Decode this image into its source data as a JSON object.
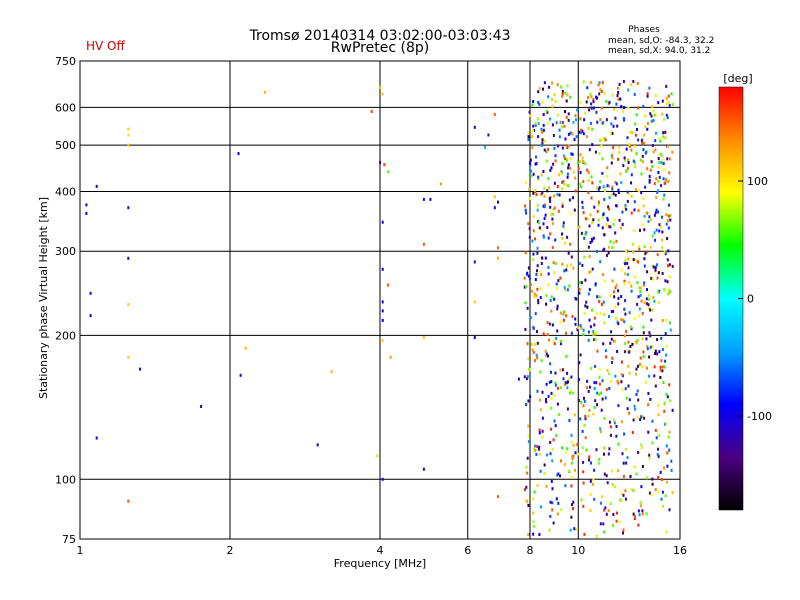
{
  "header": {
    "title_line1": "Tromsø 20140314 03:02:00-03:03:43",
    "title_line2": "RwPretec (8p)",
    "status": "HV Off",
    "stats_title": "Phases",
    "stats_o": "mean, sd,O: -84.3, 32.2",
    "stats_x": "mean, sd,X:  94.0, 31.2"
  },
  "colorbar": {
    "label": "[deg]",
    "ticks": [
      {
        "value": 100,
        "label": "100"
      },
      {
        "value": 0,
        "label": "0"
      },
      {
        "value": -100,
        "label": "-100"
      }
    ],
    "range": [
      -180,
      180
    ],
    "colors": [
      "#000000",
      "#4b0082",
      "#0000ff",
      "#00a0ff",
      "#00ffff",
      "#00ff00",
      "#ffff00",
      "#ff8c00",
      "#ff0000"
    ]
  },
  "chart_data": {
    "type": "scatter",
    "title": "Tromsø 20140314 03:02:00-03:03:43",
    "subtitle": "RwPretec (8p)",
    "xlabel": "Frequency [MHz]",
    "ylabel": "Stationary phase Virtual Height [km]",
    "x_scale": "log",
    "y_scale": "log",
    "xlim": [
      1,
      16
    ],
    "ylim": [
      75,
      750
    ],
    "x_ticks": [
      {
        "value": 1,
        "label": "1"
      },
      {
        "value": 2,
        "label": "2"
      },
      {
        "value": 4,
        "label": "4"
      },
      {
        "value": 6,
        "label": "6"
      },
      {
        "value": 8,
        "label": "8"
      },
      {
        "value": 10,
        "label": "10"
      },
      {
        "value": 16,
        "label": "16"
      }
    ],
    "y_ticks": [
      {
        "value": 75,
        "label": "75"
      },
      {
        "value": 100,
        "label": "100"
      },
      {
        "value": 200,
        "label": "200"
      },
      {
        "value": 300,
        "label": "300"
      },
      {
        "value": 400,
        "label": "400"
      },
      {
        "value": 500,
        "label": "500"
      },
      {
        "value": 600,
        "label": "600"
      },
      {
        "value": 750,
        "label": "750"
      }
    ],
    "grid": true,
    "color_variable": "phase [deg]",
    "points": [
      {
        "x": 1.03,
        "y": 375,
        "phase": -100
      },
      {
        "x": 1.03,
        "y": 360,
        "phase": -90
      },
      {
        "x": 1.05,
        "y": 245,
        "phase": -110
      },
      {
        "x": 1.05,
        "y": 220,
        "phase": -100
      },
      {
        "x": 1.08,
        "y": 410,
        "phase": -110
      },
      {
        "x": 1.08,
        "y": 122,
        "phase": -100
      },
      {
        "x": 1.25,
        "y": 540,
        "phase": 110
      },
      {
        "x": 1.25,
        "y": 525,
        "phase": 100
      },
      {
        "x": 1.25,
        "y": 500,
        "phase": 110
      },
      {
        "x": 1.25,
        "y": 370,
        "phase": -110
      },
      {
        "x": 1.25,
        "y": 290,
        "phase": -110
      },
      {
        "x": 1.25,
        "y": 232,
        "phase": 110
      },
      {
        "x": 1.25,
        "y": 180,
        "phase": 110
      },
      {
        "x": 1.25,
        "y": 90,
        "phase": 150
      },
      {
        "x": 1.32,
        "y": 170,
        "phase": -110
      },
      {
        "x": 1.75,
        "y": 142,
        "phase": -110
      },
      {
        "x": 2.08,
        "y": 480,
        "phase": -100
      },
      {
        "x": 2.1,
        "y": 165,
        "phase": -100
      },
      {
        "x": 2.15,
        "y": 188,
        "phase": 120
      },
      {
        "x": 2.35,
        "y": 645,
        "phase": 120
      },
      {
        "x": 3.0,
        "y": 118,
        "phase": -110
      },
      {
        "x": 3.2,
        "y": 168,
        "phase": 120
      },
      {
        "x": 3.85,
        "y": 588,
        "phase": 160
      },
      {
        "x": 4.0,
        "y": 660,
        "phase": 120
      },
      {
        "x": 4.05,
        "y": 640,
        "phase": 110
      },
      {
        "x": 4.0,
        "y": 460,
        "phase": -110
      },
      {
        "x": 4.08,
        "y": 455,
        "phase": 160
      },
      {
        "x": 4.15,
        "y": 440,
        "phase": 60
      },
      {
        "x": 4.05,
        "y": 345,
        "phase": -100
      },
      {
        "x": 4.05,
        "y": 275,
        "phase": -100
      },
      {
        "x": 4.05,
        "y": 235,
        "phase": -100
      },
      {
        "x": 4.05,
        "y": 225,
        "phase": -100
      },
      {
        "x": 4.05,
        "y": 215,
        "phase": -90
      },
      {
        "x": 4.15,
        "y": 255,
        "phase": 150
      },
      {
        "x": 4.05,
        "y": 195,
        "phase": 110
      },
      {
        "x": 4.2,
        "y": 180,
        "phase": 130
      },
      {
        "x": 3.95,
        "y": 112,
        "phase": 110
      },
      {
        "x": 4.05,
        "y": 100,
        "phase": -100
      },
      {
        "x": 4.9,
        "y": 385,
        "phase": -100
      },
      {
        "x": 5.05,
        "y": 385,
        "phase": -90
      },
      {
        "x": 4.9,
        "y": 310,
        "phase": 150
      },
      {
        "x": 4.9,
        "y": 198,
        "phase": 110
      },
      {
        "x": 4.9,
        "y": 105,
        "phase": -100
      },
      {
        "x": 5.3,
        "y": 415,
        "phase": 130
      },
      {
        "x": 6.2,
        "y": 545,
        "phase": -110
      },
      {
        "x": 6.5,
        "y": 495,
        "phase": -40
      },
      {
        "x": 6.6,
        "y": 525,
        "phase": -120
      },
      {
        "x": 6.2,
        "y": 285,
        "phase": -100
      },
      {
        "x": 6.2,
        "y": 235,
        "phase": 110
      },
      {
        "x": 6.2,
        "y": 198,
        "phase": -110
      },
      {
        "x": 6.8,
        "y": 580,
        "phase": 150
      },
      {
        "x": 6.8,
        "y": 390,
        "phase": 110
      },
      {
        "x": 6.9,
        "y": 380,
        "phase": -110
      },
      {
        "x": 6.8,
        "y": 370,
        "phase": -110
      },
      {
        "x": 6.9,
        "y": 305,
        "phase": 150
      },
      {
        "x": 6.9,
        "y": 290,
        "phase": 120
      },
      {
        "x": 7.6,
        "y": 162,
        "phase": -100
      },
      {
        "x": 6.9,
        "y": 92,
        "phase": 150
      }
    ],
    "dense_cloud": {
      "x_range": [
        7.8,
        15.5
      ],
      "y_range": [
        75,
        680
      ],
      "approx_points": 1300,
      "phase_clusters": [
        -100,
        110
      ]
    }
  }
}
